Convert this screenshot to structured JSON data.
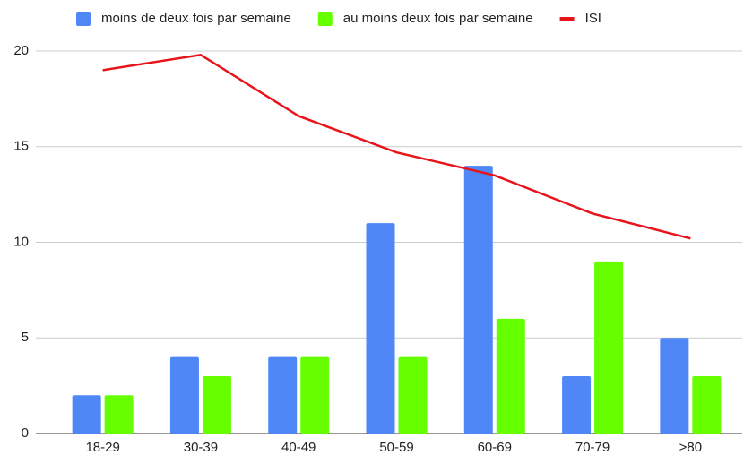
{
  "chart_data": {
    "type": "bar-line",
    "categories": [
      "18-29",
      "30-39",
      "40-49",
      "50-59",
      "60-69",
      "70-79",
      ">80"
    ],
    "series": [
      {
        "name": "moins de deux fois par semaine",
        "type": "bar",
        "color": "#4f87f7",
        "values": [
          2,
          4,
          4,
          11,
          14,
          3,
          5
        ]
      },
      {
        "name": "au moins deux fois par semaine",
        "type": "bar",
        "color": "#66ff00",
        "values": [
          2,
          3,
          4,
          4,
          6,
          9,
          3
        ]
      },
      {
        "name": "ISI",
        "type": "line",
        "color": "#e8141a",
        "values": [
          19.0,
          19.8,
          16.6,
          14.7,
          13.5,
          11.5,
          10.2
        ]
      }
    ],
    "ylim": [
      0,
      20
    ],
    "yticks": [
      0,
      5,
      10,
      15,
      20
    ],
    "grid": true,
    "legend": "top"
  }
}
